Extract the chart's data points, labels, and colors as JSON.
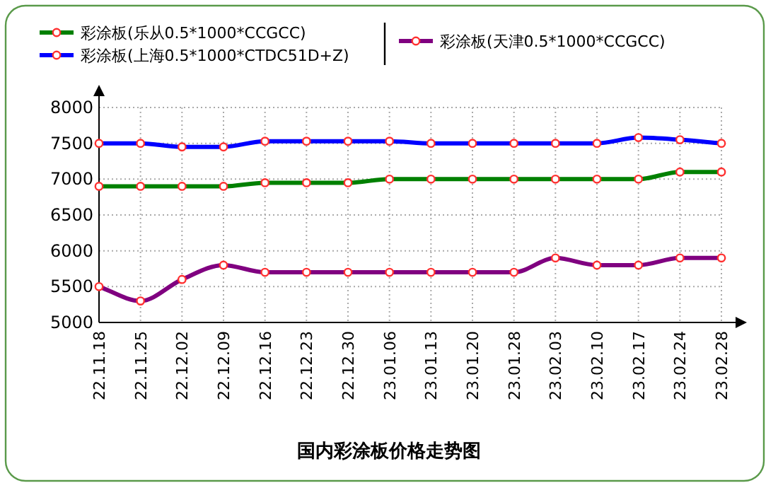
{
  "chart_data": {
    "type": "line",
    "title": "国内彩涂板价格走势图",
    "categories": [
      "22.11.18",
      "22.11.25",
      "22.12.02",
      "22.12.09",
      "22.12.16",
      "22.12.23",
      "22.12.30",
      "23.01.06",
      "23.01.13",
      "23.01.20",
      "23.01.28",
      "23.02.03",
      "23.02.10",
      "23.02.17",
      "23.02.24",
      "23.02.28"
    ],
    "series": [
      {
        "name": "彩涂板(乐从0.5*1000*CCGCC)",
        "color": "#008000",
        "values": [
          6900,
          6900,
          6900,
          6900,
          6950,
          6950,
          6950,
          7000,
          7000,
          7000,
          7000,
          7000,
          7000,
          7000,
          7100,
          7100
        ]
      },
      {
        "name": "彩涂板(上海0.5*1000*CTDC51D+Z)",
        "color": "#0000ff",
        "values": [
          7500,
          7500,
          7450,
          7450,
          7530,
          7530,
          7530,
          7530,
          7500,
          7500,
          7500,
          7500,
          7500,
          7580,
          7550,
          7500
        ]
      },
      {
        "name": "彩涂板(天津0.5*1000*CCGCC)",
        "color": "#800080",
        "values": [
          5500,
          5300,
          5600,
          5800,
          5700,
          5700,
          5700,
          5700,
          5700,
          5700,
          5700,
          5900,
          5800,
          5800,
          5900,
          5900
        ]
      }
    ],
    "ylim": [
      5000,
      8000
    ],
    "yticks": [
      5000,
      5500,
      6000,
      6500,
      7000,
      7500,
      8000
    ],
    "grid": true,
    "legend": "top",
    "marker": "circle",
    "line_style": "solid"
  }
}
